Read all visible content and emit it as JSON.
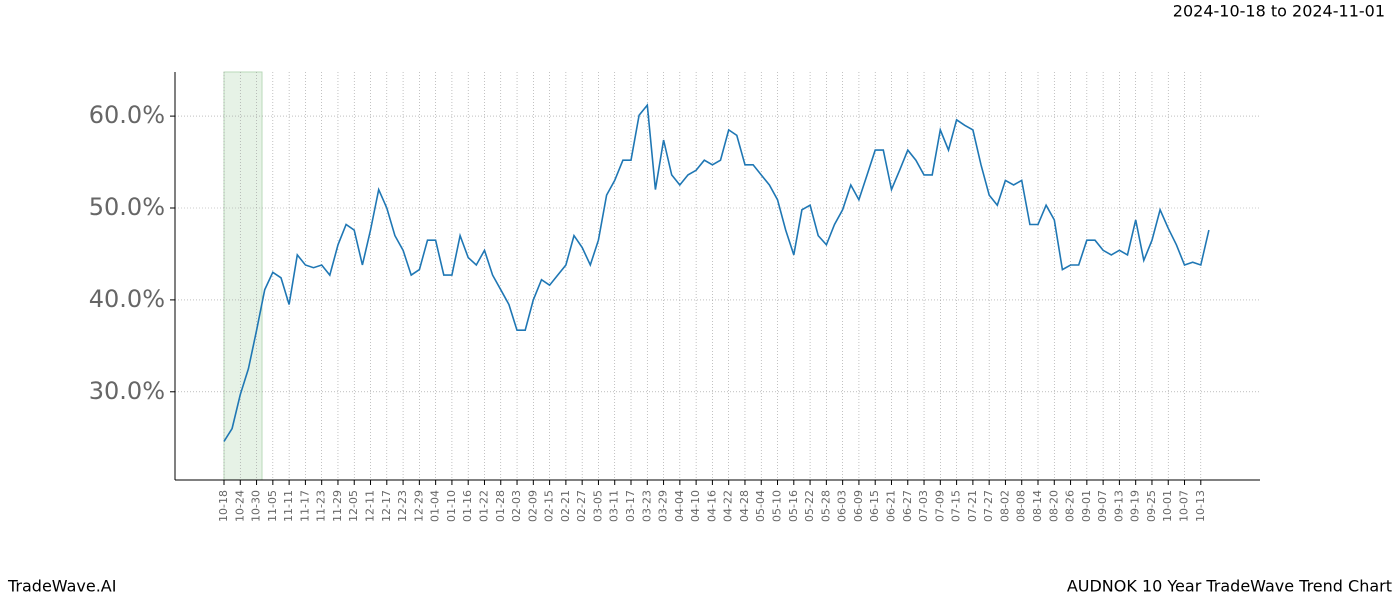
{
  "chart_data": {
    "type": "line",
    "title": "AUDNOK 10 Year TradeWave Trend Chart",
    "subtitle": "2024-10-18 to 2024-11-01",
    "watermark": "TradeWave.AI",
    "color": "#1f77b4",
    "x": [
      "10-18",
      "10-21",
      "10-24",
      "10-27",
      "10-30",
      "11-02",
      "11-05",
      "11-08",
      "11-11",
      "11-14",
      "11-17",
      "11-20",
      "11-23",
      "11-26",
      "11-29",
      "12-02",
      "12-05",
      "12-08",
      "12-11",
      "12-14",
      "12-17",
      "12-20",
      "12-23",
      "12-26",
      "12-29",
      "01-01",
      "01-04",
      "01-07",
      "01-10",
      "01-13",
      "01-16",
      "01-19",
      "01-22",
      "01-25",
      "01-28",
      "01-31",
      "02-03",
      "02-06",
      "02-09",
      "02-12",
      "02-15",
      "02-18",
      "02-21",
      "02-24",
      "02-27",
      "03-02",
      "03-05",
      "03-08",
      "03-11",
      "03-14",
      "03-17",
      "03-20",
      "03-23",
      "03-26",
      "03-29",
      "04-01",
      "04-04",
      "04-07",
      "04-10",
      "04-13",
      "04-16",
      "04-19",
      "04-22",
      "04-25",
      "04-28",
      "05-01",
      "05-04",
      "05-07",
      "05-10",
      "05-13",
      "05-16",
      "05-19",
      "05-22",
      "05-25",
      "05-28",
      "05-31",
      "06-03",
      "06-06",
      "06-09",
      "06-12",
      "06-15",
      "06-18",
      "06-21",
      "06-24",
      "06-27",
      "06-30",
      "07-03",
      "07-06",
      "07-09",
      "07-12",
      "07-15",
      "07-18",
      "07-21",
      "07-24",
      "07-27",
      "07-30",
      "08-02",
      "08-05",
      "08-08",
      "08-11",
      "08-14",
      "08-17",
      "08-20",
      "08-23",
      "08-26",
      "08-29",
      "09-01",
      "09-04",
      "09-07",
      "09-10",
      "09-13",
      "09-16",
      "09-19",
      "09-22",
      "09-25",
      "09-28",
      "10-01",
      "10-04",
      "10-07",
      "10-10",
      "10-13",
      "10-16"
    ],
    "values": [
      24.6,
      26.0,
      29.7,
      32.5,
      36.7,
      41.1,
      43.0,
      42.4,
      39.5,
      44.9,
      43.8,
      43.5,
      43.8,
      42.7,
      46.0,
      48.2,
      47.6,
      43.8,
      47.6,
      52.0,
      50.0,
      47.0,
      45.4,
      42.7,
      43.3,
      46.5,
      46.5,
      42.7,
      42.7,
      47.0,
      44.6,
      43.8,
      45.4,
      42.7,
      41.1,
      39.5,
      36.7,
      36.7,
      40.0,
      42.2,
      41.6,
      42.7,
      43.8,
      47.0,
      45.7,
      43.8,
      46.5,
      51.4,
      53.0,
      55.2,
      55.2,
      60.1,
      61.2,
      52.0,
      57.4,
      53.6,
      52.5,
      53.6,
      54.1,
      55.2,
      54.7,
      55.2,
      58.5,
      57.9,
      54.7,
      54.7,
      53.6,
      52.5,
      50.9,
      47.6,
      44.9,
      49.8,
      50.3,
      47.0,
      46.0,
      48.2,
      49.8,
      52.5,
      50.9,
      53.6,
      56.3,
      56.3,
      52.0,
      54.1,
      56.3,
      55.2,
      53.6,
      53.6,
      58.5,
      56.3,
      59.6,
      59.0,
      58.5,
      54.7,
      51.4,
      50.3,
      53.0,
      52.5,
      53.0,
      48.2,
      48.2,
      50.3,
      48.7,
      43.3,
      43.8,
      43.8,
      46.5,
      46.5,
      45.4,
      44.9,
      45.4,
      44.9,
      48.7,
      44.3,
      46.5,
      49.8,
      47.8,
      46.0,
      43.8,
      44.1,
      43.8,
      47.6
    ],
    "xticks": [
      "10-18",
      "10-24",
      "10-30",
      "11-05",
      "11-11",
      "11-17",
      "11-23",
      "11-29",
      "12-05",
      "12-11",
      "12-17",
      "12-23",
      "12-29",
      "01-04",
      "01-10",
      "01-16",
      "01-22",
      "01-28",
      "02-03",
      "02-09",
      "02-15",
      "02-21",
      "02-27",
      "03-05",
      "03-11",
      "03-17",
      "03-23",
      "03-29",
      "04-04",
      "04-10",
      "04-16",
      "04-22",
      "04-28",
      "05-04",
      "05-10",
      "05-16",
      "05-22",
      "05-28",
      "06-03",
      "06-09",
      "06-15",
      "06-21",
      "06-27",
      "07-03",
      "07-09",
      "07-15",
      "07-21",
      "07-27",
      "08-02",
      "08-08",
      "08-14",
      "08-20",
      "08-26",
      "09-01",
      "09-07",
      "09-13",
      "09-19",
      "09-25",
      "10-01",
      "10-07",
      "10-13"
    ],
    "ylim": [
      20.4,
      64.8
    ],
    "yticks": [
      {
        "value": 30,
        "label": "30.0%"
      },
      {
        "value": 40,
        "label": "40.0%"
      },
      {
        "value": 50,
        "label": "50.0%"
      },
      {
        "value": 60,
        "label": "60.0%"
      }
    ],
    "grid": true
  }
}
